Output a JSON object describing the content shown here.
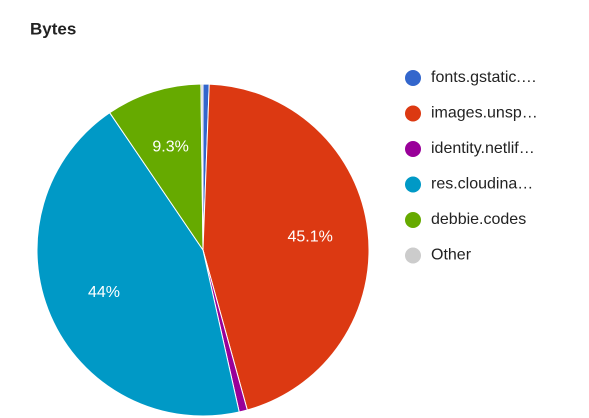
{
  "chart_data": {
    "type": "pie",
    "title": "Bytes",
    "categories": [
      "fonts.gstatic.…",
      "images.unsp…",
      "identity.netlif…",
      "res.cloudina…",
      "debbie.codes",
      "Other"
    ],
    "values": [
      0.6,
      45.1,
      0.8,
      44,
      9.3,
      0.2
    ],
    "value_labels": [
      null,
      "45.1%",
      null,
      "44%",
      "9.3%",
      null
    ],
    "colors": [
      "#3366cc",
      "#dc3912",
      "#990099",
      "#0099c6",
      "#66aa00",
      "#cccccc"
    ],
    "legend": "right"
  }
}
